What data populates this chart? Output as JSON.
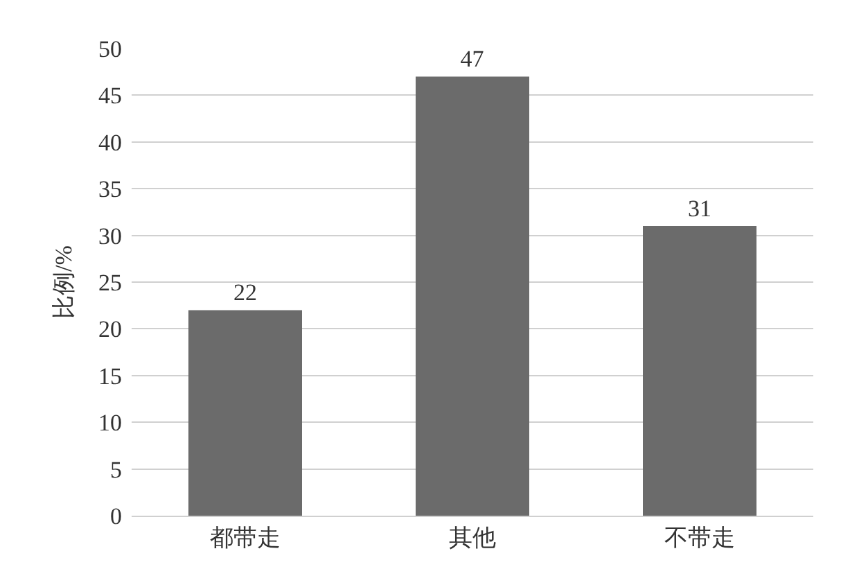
{
  "chart_data": {
    "type": "bar",
    "ylabel": "比例/%",
    "categories": [
      "都带走",
      "其他",
      "不带走"
    ],
    "values": [
      22,
      47,
      31
    ],
    "color": "#6b6b6b",
    "data_labels": true,
    "ylim": [
      0,
      50
    ],
    "yticks": [
      0,
      5,
      10,
      15,
      20,
      25,
      30,
      35,
      40,
      45,
      50
    ],
    "grid": "y"
  }
}
